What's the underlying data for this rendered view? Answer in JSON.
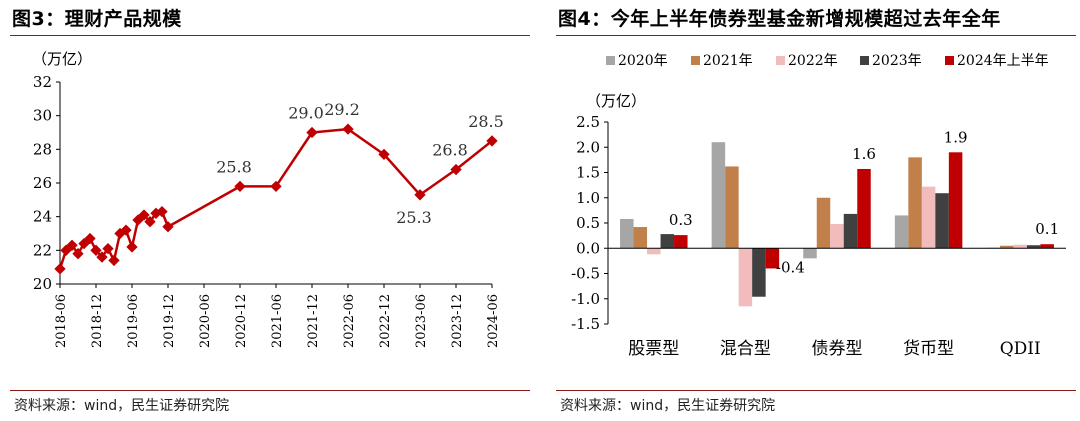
{
  "figures": [
    {
      "title": "图3：理财产品规模",
      "source": "资料来源：wind，民生证券研究院"
    },
    {
      "title": "图4：今年上半年债券型基金新增规模超过去年全年",
      "source": "资料来源：wind，民生证券研究院"
    }
  ],
  "chart_data": [
    {
      "type": "line",
      "title": "图3：理财产品规模",
      "ylabel": "（万亿）",
      "ylim": [
        20,
        32
      ],
      "yticks": [
        20,
        22,
        24,
        26,
        28,
        30,
        32
      ],
      "xticks": [
        "2018-06",
        "2018-12",
        "2019-06",
        "2019-12",
        "2020-06",
        "2020-12",
        "2021-06",
        "2021-12",
        "2022-06",
        "2022-12",
        "2023-06",
        "2023-12",
        "2024-06"
      ],
      "grid": false,
      "color": "#c00000",
      "points": [
        {
          "x": "2018-06",
          "y": 20.9
        },
        {
          "x": "2018-07",
          "y": 22.0
        },
        {
          "x": "2018-08",
          "y": 22.3
        },
        {
          "x": "2018-09",
          "y": 21.8
        },
        {
          "x": "2018-10",
          "y": 22.4
        },
        {
          "x": "2018-11",
          "y": 22.7
        },
        {
          "x": "2018-12",
          "y": 22.0
        },
        {
          "x": "2019-01",
          "y": 21.6
        },
        {
          "x": "2019-02",
          "y": 22.1
        },
        {
          "x": "2019-03",
          "y": 21.4
        },
        {
          "x": "2019-04",
          "y": 23.0
        },
        {
          "x": "2019-05",
          "y": 23.2
        },
        {
          "x": "2019-06",
          "y": 22.2
        },
        {
          "x": "2019-07",
          "y": 23.8
        },
        {
          "x": "2019-08",
          "y": 24.1
        },
        {
          "x": "2019-09",
          "y": 23.7
        },
        {
          "x": "2019-10",
          "y": 24.2
        },
        {
          "x": "2019-11",
          "y": 24.3
        },
        {
          "x": "2019-12",
          "y": 23.4
        },
        {
          "x": "2020-12",
          "y": 25.8
        },
        {
          "x": "2021-06",
          "y": 25.8
        },
        {
          "x": "2021-12",
          "y": 29.0
        },
        {
          "x": "2022-06",
          "y": 29.2
        },
        {
          "x": "2022-12",
          "y": 27.7
        },
        {
          "x": "2023-06",
          "y": 25.3
        },
        {
          "x": "2023-12",
          "y": 26.8
        },
        {
          "x": "2024-06",
          "y": 28.5
        }
      ],
      "annotations": [
        {
          "x": "2020-12",
          "label": "25.8",
          "position": "above"
        },
        {
          "x": "2021-12",
          "label": "29.0",
          "position": "above"
        },
        {
          "x": "2022-06",
          "label": "29.2",
          "position": "above"
        },
        {
          "x": "2023-06",
          "label": "25.3",
          "position": "below"
        },
        {
          "x": "2023-12",
          "label": "26.8",
          "position": "above"
        },
        {
          "x": "2024-06",
          "label": "28.5",
          "position": "above"
        }
      ]
    },
    {
      "type": "bar",
      "title": "图4：今年上半年债券型基金新增规模超过去年全年",
      "ylabel": "（万亿）",
      "ylim": [
        -1.5,
        2.5
      ],
      "yticks": [
        -1.5,
        -1.0,
        -0.5,
        0.0,
        0.5,
        1.0,
        1.5,
        2.0,
        2.5
      ],
      "categories": [
        "股票型",
        "混合型",
        "债券型",
        "货币型",
        "QDII"
      ],
      "legend_position": "top",
      "grid": false,
      "series": [
        {
          "name": "2020年",
          "color": "#a6a6a6",
          "values": [
            0.58,
            2.1,
            -0.2,
            0.65,
            0.01
          ]
        },
        {
          "name": "2021年",
          "color": "#c17f4a",
          "values": [
            0.42,
            1.62,
            1.0,
            1.8,
            0.05
          ]
        },
        {
          "name": "2022年",
          "color": "#f2bcbc",
          "values": [
            -0.12,
            -1.15,
            0.48,
            1.22,
            0.07
          ]
        },
        {
          "name": "2023年",
          "color": "#404040",
          "values": [
            0.28,
            -0.96,
            0.68,
            1.09,
            0.06
          ]
        },
        {
          "name": "2024年上半年",
          "color": "#c00000",
          "values": [
            0.26,
            -0.4,
            1.57,
            1.9,
            0.08
          ]
        }
      ],
      "annotations": [
        {
          "category": "股票型",
          "label": "0.3"
        },
        {
          "category": "混合型",
          "label": "-0.4"
        },
        {
          "category": "债券型",
          "label": "1.6"
        },
        {
          "category": "货币型",
          "label": "1.9"
        },
        {
          "category": "QDII",
          "label": "0.1"
        }
      ]
    }
  ]
}
